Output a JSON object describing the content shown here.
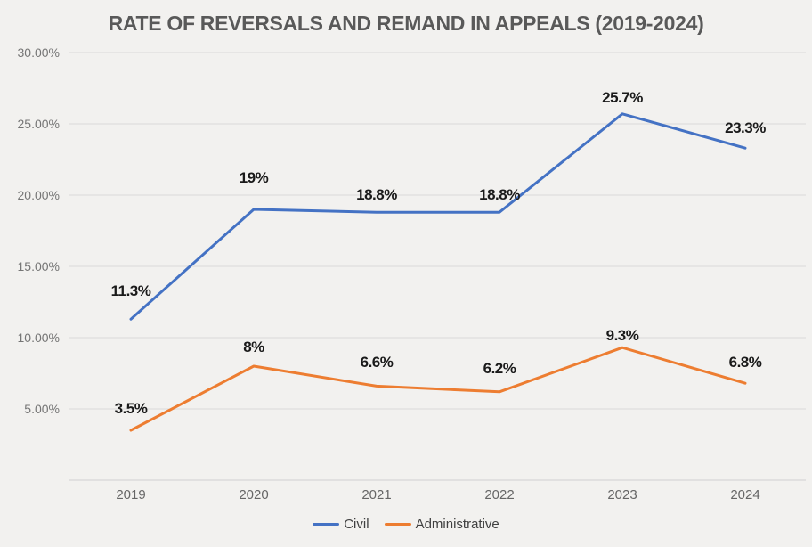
{
  "title": "RATE OF REVERSALS AND REMAND IN APPEALS (2019-2024)",
  "chart_data": {
    "type": "line",
    "title": "RATE OF REVERSALS AND REMAND IN APPEALS (2019-2024)",
    "categories": [
      "2019",
      "2020",
      "2021",
      "2022",
      "2023",
      "2024"
    ],
    "series": [
      {
        "name": "Civil",
        "color": "#4472C4",
        "values": [
          11.3,
          19,
          18.8,
          18.8,
          25.7,
          23.3
        ],
        "point_labels": [
          "11.3%",
          "19%",
          "18.8%",
          "18.8%",
          "25.7%",
          "23.3%"
        ]
      },
      {
        "name": "Administrative",
        "color": "#ED7D31",
        "values": [
          3.5,
          8,
          6.6,
          6.2,
          9.3,
          6.8
        ],
        "point_labels": [
          "3.5%",
          "8%",
          "6.6%",
          "6.2%",
          "9.3%",
          "6.8%"
        ]
      }
    ],
    "xlabel": "",
    "ylabel": "",
    "ylim": [
      0,
      30
    ],
    "y_tick_values": [
      30,
      25,
      20,
      15,
      10,
      5
    ],
    "y_tick_labels": [
      "30.00%",
      "25.00%",
      "20.00%",
      "15.00%",
      "10.00%",
      "5.00%"
    ],
    "grid": true,
    "legend_position": "bottom"
  },
  "colors": {
    "background": "#F2F1EF",
    "gridline": "#D9D9D9",
    "axis_line": "#D0D0D0",
    "title_text": "#595959",
    "data_label_text": "#1A1A1A",
    "axis_label_text": "#757575",
    "category_label_text": "#666666",
    "legend_text": "#404040"
  }
}
